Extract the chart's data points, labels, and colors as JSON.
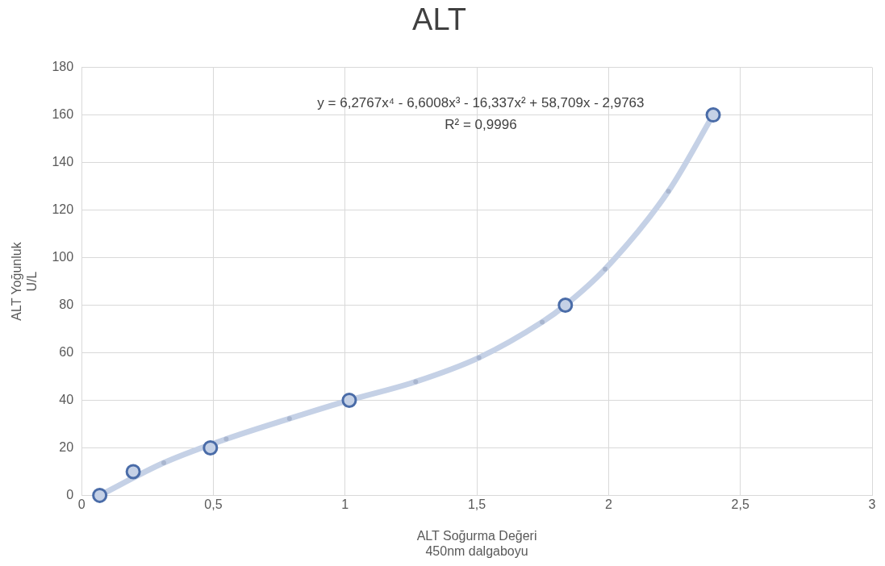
{
  "chart_data": {
    "type": "scatter",
    "title": "ALT",
    "xlabel": "ALT Soğurma Değeri\n450nm dalgaboyu",
    "ylabel": "ALT Yoğunluk\nU/L",
    "annotations": [
      "y = 6,2767x⁴ - 6,6008x³ - 16,337x² + 58,709x - 2,9763",
      "R² = 0,9996"
    ],
    "series": [
      {
        "type": "line",
        "color": "#c5d1e6",
        "x": [
          0.069,
          0.312,
          0.549,
          0.789,
          1.016,
          1.268,
          1.508,
          1.748,
          1.836,
          1.987,
          2.227,
          2.397
        ],
        "values": [
          0,
          13.7,
          23.7,
          32.3,
          40,
          47.8,
          57.9,
          72.9,
          80,
          95.2,
          127.9,
          160
        ]
      },
      {
        "color": "#4a6ca8",
        "x": [
          0.069,
          0.196,
          0.489,
          1.016,
          1.836,
          2.397
        ],
        "values": [
          0,
          10,
          20,
          40,
          80,
          160
        ]
      }
    ],
    "marker": "circle",
    "legend": false,
    "grid": true,
    "xlim": [
      0,
      3
    ],
    "xticks": [
      0,
      {
        "value": 0.5,
        "label": "0,5"
      },
      1,
      {
        "value": 1.5,
        "label": "1,5"
      },
      2,
      {
        "value": 2.5,
        "label": "2,5"
      },
      3
    ],
    "ylim": [
      0,
      180
    ],
    "yticks": [
      0,
      20,
      40,
      60,
      80,
      100,
      120,
      140,
      160,
      180
    ]
  }
}
